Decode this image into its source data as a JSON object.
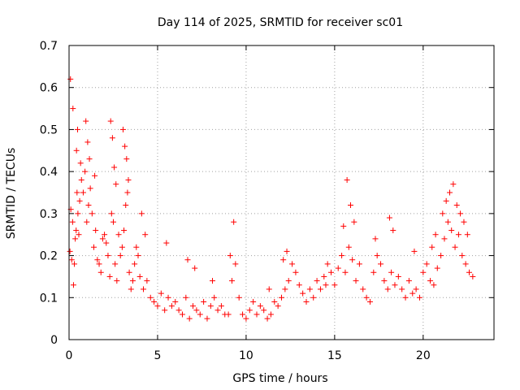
{
  "chart_data": {
    "type": "scatter",
    "title": "Day 114 of 2025, SRMTID for receiver sc01",
    "xlabel": "GPS time / hours",
    "ylabel": "SRMTID / TECUs",
    "xlim": [
      0,
      24
    ],
    "ylim": [
      0,
      0.7
    ],
    "xticks": [
      0,
      5,
      10,
      15,
      20
    ],
    "yticks": [
      0,
      0.1,
      0.2,
      0.3,
      0.4,
      0.5,
      0.6,
      0.7
    ],
    "xtick_labels": [
      "0",
      "5",
      "10",
      "15",
      "20"
    ],
    "ytick_labels": [
      "0",
      "0.1",
      "0.2",
      "0.3",
      "0.4",
      "0.5",
      "0.6",
      "0.7"
    ],
    "grid": true,
    "marker": "+",
    "color": "#ff0000",
    "series": [
      {
        "name": "SRMTID",
        "x": [
          0.05,
          0.1,
          0.15,
          0.2,
          0.25,
          0.3,
          0.35,
          0.4,
          0.45,
          0.5,
          0.55,
          0.6,
          0.7,
          0.8,
          0.9,
          1.0,
          1.1,
          1.2,
          1.3,
          1.4,
          1.5,
          1.6,
          1.7,
          1.8,
          1.9,
          2.0,
          2.1,
          2.2,
          2.3,
          2.4,
          2.5,
          2.6,
          2.7,
          2.8,
          2.9,
          3.0,
          3.1,
          3.2,
          3.3,
          3.4,
          3.5,
          3.6,
          3.7,
          3.8,
          3.9,
          4.0,
          4.2,
          4.4,
          4.6,
          4.8,
          5.0,
          5.2,
          5.4,
          5.6,
          5.8,
          6.0,
          6.2,
          6.4,
          6.6,
          6.8,
          7.0,
          7.2,
          7.4,
          7.6,
          7.8,
          8.0,
          8.2,
          8.4,
          8.6,
          8.8,
          9.0,
          9.2,
          9.4,
          9.6,
          9.8,
          10.0,
          10.2,
          10.4,
          10.6,
          10.8,
          11.0,
          11.2,
          11.4,
          11.6,
          11.8,
          12.0,
          12.2,
          12.4,
          12.6,
          12.8,
          13.0,
          13.2,
          13.4,
          13.6,
          13.8,
          14.0,
          14.2,
          14.4,
          14.6,
          14.8,
          15.0,
          15.2,
          15.4,
          15.6,
          15.8,
          16.0,
          16.2,
          16.4,
          16.6,
          16.8,
          17.0,
          17.2,
          17.4,
          17.6,
          17.8,
          18.0,
          18.2,
          18.4,
          18.6,
          18.8,
          19.0,
          19.2,
          19.4,
          19.6,
          19.8,
          20.0,
          20.2,
          20.4,
          20.6,
          20.8,
          21.0,
          21.2,
          21.4,
          21.6,
          21.8,
          22.0,
          22.2,
          22.4,
          22.6,
          22.8,
          0.08,
          0.22,
          0.42,
          0.48,
          0.65,
          0.95,
          1.05,
          1.15,
          1.45,
          2.35,
          2.45,
          2.55,
          2.65,
          3.05,
          3.15,
          3.25,
          3.35,
          4.1,
          4.3,
          5.5,
          6.7,
          7.1,
          8.1,
          9.1,
          9.3,
          11.3,
          12.1,
          12.3,
          14.5,
          15.5,
          15.7,
          15.9,
          16.1,
          17.3,
          18.1,
          18.3,
          19.5,
          20.5,
          20.7,
          21.1,
          21.3,
          21.5,
          21.7,
          21.9,
          22.1,
          22.3,
          22.5
        ],
        "y": [
          0.21,
          0.31,
          0.19,
          0.28,
          0.13,
          0.18,
          0.24,
          0.26,
          0.35,
          0.3,
          0.25,
          0.33,
          0.38,
          0.35,
          0.4,
          0.28,
          0.32,
          0.36,
          0.3,
          0.22,
          0.26,
          0.19,
          0.18,
          0.16,
          0.24,
          0.25,
          0.23,
          0.2,
          0.15,
          0.3,
          0.28,
          0.18,
          0.14,
          0.25,
          0.2,
          0.22,
          0.26,
          0.32,
          0.35,
          0.16,
          0.12,
          0.14,
          0.18,
          0.22,
          0.2,
          0.15,
          0.12,
          0.14,
          0.1,
          0.09,
          0.08,
          0.11,
          0.07,
          0.1,
          0.08,
          0.09,
          0.07,
          0.06,
          0.1,
          0.05,
          0.08,
          0.07,
          0.06,
          0.09,
          0.05,
          0.08,
          0.1,
          0.07,
          0.08,
          0.06,
          0.06,
          0.14,
          0.18,
          0.1,
          0.06,
          0.05,
          0.07,
          0.09,
          0.06,
          0.08,
          0.07,
          0.05,
          0.06,
          0.09,
          0.08,
          0.1,
          0.12,
          0.14,
          0.18,
          0.16,
          0.13,
          0.11,
          0.09,
          0.12,
          0.1,
          0.14,
          0.12,
          0.15,
          0.18,
          0.16,
          0.13,
          0.17,
          0.2,
          0.16,
          0.22,
          0.19,
          0.14,
          0.18,
          0.12,
          0.1,
          0.09,
          0.16,
          0.2,
          0.18,
          0.14,
          0.12,
          0.16,
          0.13,
          0.15,
          0.12,
          0.1,
          0.14,
          0.11,
          0.12,
          0.1,
          0.16,
          0.18,
          0.14,
          0.13,
          0.17,
          0.2,
          0.24,
          0.28,
          0.26,
          0.22,
          0.25,
          0.2,
          0.18,
          0.16,
          0.15,
          0.62,
          0.55,
          0.45,
          0.5,
          0.42,
          0.52,
          0.47,
          0.43,
          0.39,
          0.52,
          0.48,
          0.41,
          0.37,
          0.5,
          0.46,
          0.43,
          0.38,
          0.3,
          0.25,
          0.23,
          0.19,
          0.17,
          0.14,
          0.2,
          0.28,
          0.12,
          0.19,
          0.21,
          0.13,
          0.27,
          0.38,
          0.32,
          0.28,
          0.24,
          0.29,
          0.26,
          0.21,
          0.22,
          0.25,
          0.3,
          0.33,
          0.35,
          0.37,
          0.32,
          0.3,
          0.28,
          0.25
        ]
      }
    ]
  }
}
